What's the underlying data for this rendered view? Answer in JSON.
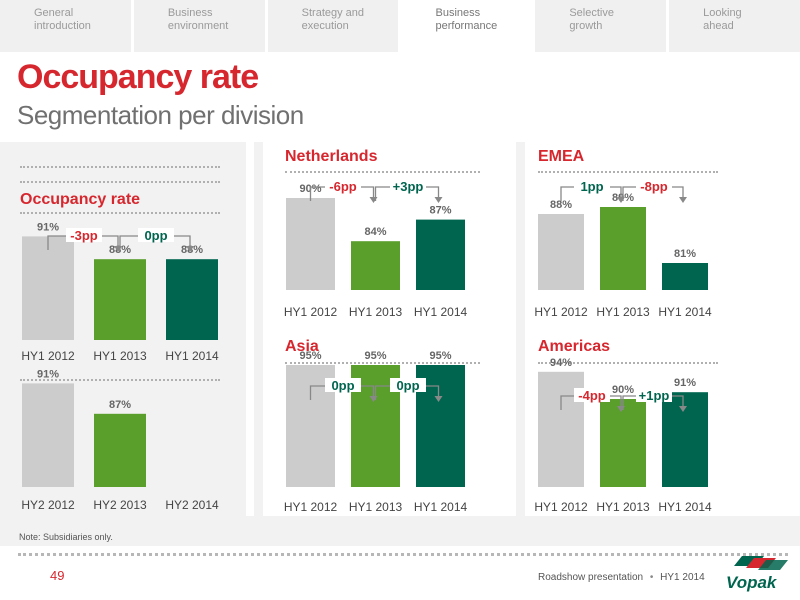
{
  "nav": {
    "tabs": [
      {
        "label": "General\nintroduction",
        "active": false
      },
      {
        "label": "Business\nenvironment",
        "active": false
      },
      {
        "label": "Strategy and\nexecution",
        "active": false
      },
      {
        "label": "Business\nperformance",
        "active": true
      },
      {
        "label": "Selective\ngrowth",
        "active": false
      },
      {
        "label": "Looking\nahead",
        "active": false
      }
    ]
  },
  "header": {
    "title": "Occupancy rate",
    "subtitle": "Segmentation per division"
  },
  "colors": {
    "accent_red": "#d7272e",
    "bar_grey": "#cccccc",
    "bar_light_green": "#5a9e2c",
    "bar_dark_green": "#00654f",
    "delta_green": "#00654f",
    "delta_red": "#d7272e"
  },
  "chart_data": [
    {
      "type": "bar",
      "title": "Occupancy rate",
      "categories": [
        "HY1 2012",
        "HY1 2013",
        "HY1 2014"
      ],
      "values": [
        91,
        88,
        88
      ],
      "value_labels": [
        "91%",
        "88%",
        "88%"
      ],
      "deltas": [
        {
          "label": "-3pp",
          "sign": "negative"
        },
        {
          "label": "0pp",
          "sign": "positive"
        }
      ]
    },
    {
      "type": "bar",
      "title": "",
      "categories": [
        "HY2 2012",
        "HY2 2013",
        "HY2 2014"
      ],
      "values": [
        91,
        87,
        null
      ],
      "value_labels": [
        "91%",
        "87%",
        ""
      ],
      "deltas": []
    },
    {
      "type": "bar",
      "title": "Netherlands",
      "categories": [
        "HY1 2012",
        "HY1 2013",
        "HY1 2014"
      ],
      "values": [
        90,
        84,
        87
      ],
      "value_labels": [
        "90%",
        "84%",
        "87%"
      ],
      "deltas": [
        {
          "label": "-6pp",
          "sign": "negative"
        },
        {
          "label": "+3pp",
          "sign": "positive"
        }
      ]
    },
    {
      "type": "bar",
      "title": "EMEA",
      "categories": [
        "HY1 2012",
        "HY1 2013",
        "HY1 2014"
      ],
      "values": [
        88,
        89,
        81
      ],
      "value_labels": [
        "88%",
        "89%",
        "81%"
      ],
      "deltas": [
        {
          "label": "1pp",
          "sign": "positive"
        },
        {
          "label": "-8pp",
          "sign": "negative"
        }
      ]
    },
    {
      "type": "bar",
      "title": "Asia",
      "categories": [
        "HY1 2012",
        "HY1 2013",
        "HY1 2014"
      ],
      "values": [
        95,
        95,
        95
      ],
      "value_labels": [
        "95%",
        "95%",
        "95%"
      ],
      "deltas": [
        {
          "label": "0pp",
          "sign": "positive"
        },
        {
          "label": "0pp",
          "sign": "positive"
        }
      ]
    },
    {
      "type": "bar",
      "title": "Americas",
      "categories": [
        "HY1 2012",
        "HY1 2013",
        "HY1 2014"
      ],
      "values": [
        94,
        90,
        91
      ],
      "value_labels": [
        "94%",
        "90%",
        "91%"
      ],
      "deltas": [
        {
          "label": "-4pp",
          "sign": "negative"
        },
        {
          "label": "+1pp",
          "sign": "positive"
        }
      ]
    }
  ],
  "footer": {
    "note": "Note: Subsidiaries only.",
    "page_number": "49",
    "presentation": "Roadshow presentation",
    "period": "HY1 2014",
    "logo_text": "Vopak"
  }
}
